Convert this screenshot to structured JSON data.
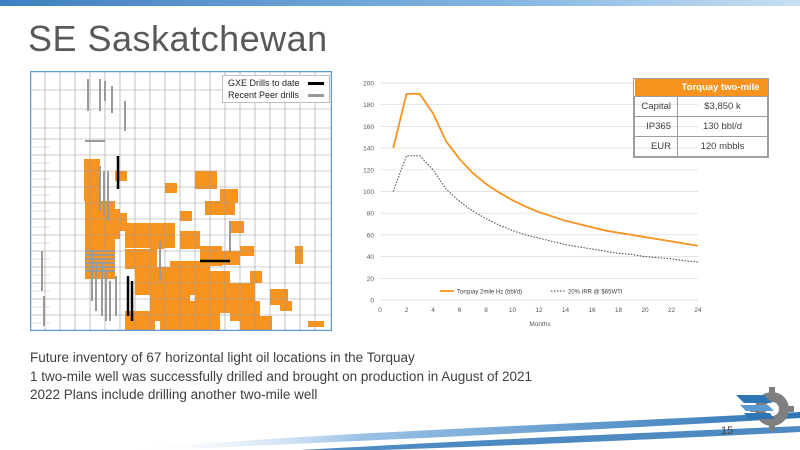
{
  "slide": {
    "title": "SE Saskatchewan",
    "page_number": "15",
    "bullets": [
      "Future inventory of 67 horizontal light oil locations in the Torquay",
      "1 two-mile well was successfully drilled and brought on production in August of 2021",
      "2022 Plans include drilling another two-mile well"
    ],
    "colors": {
      "accent": "#f7931e",
      "bar_blue": "#3f7fc0",
      "gxe_drill": "#000000",
      "peer_drill": "#9a9a9a"
    }
  },
  "map_legend": {
    "items": [
      {
        "label": "GXE Drills to date",
        "color": "#000000"
      },
      {
        "label": "Recent Peer drills",
        "color": "#9a9a9a"
      }
    ]
  },
  "summary_table": {
    "header": "Torquay two-mile",
    "rows": [
      {
        "label": "Capital",
        "value": "$3,850 k"
      },
      {
        "label": "IP365",
        "value": "130 bbl/d"
      },
      {
        "label": "EUR",
        "value": "120 mbbls"
      }
    ]
  },
  "chart_data": {
    "type": "line",
    "title": "",
    "xlabel": "Months",
    "ylabel": "",
    "xlim": [
      0,
      24
    ],
    "ylim": [
      0,
      200
    ],
    "x_ticks": [
      0,
      2,
      4,
      6,
      8,
      10,
      12,
      14,
      16,
      18,
      20,
      22,
      24
    ],
    "y_ticks": [
      0,
      20,
      40,
      60,
      80,
      100,
      120,
      140,
      160,
      180,
      200
    ],
    "grid": true,
    "legend_position": "bottom",
    "series": [
      {
        "name": "Torquay 2mile Hz (bbl/d)",
        "color": "#f7931e",
        "style": "solid",
        "x": [
          1,
          2,
          3,
          4,
          5,
          6,
          7,
          8,
          9,
          10,
          11,
          12,
          13,
          14,
          15,
          16,
          17,
          18,
          19,
          20,
          21,
          22,
          23,
          24
        ],
        "values": [
          140,
          190,
          190,
          172,
          146,
          130,
          117,
          107,
          99,
          92,
          86,
          81,
          77,
          73,
          70,
          67,
          64,
          62,
          60,
          58,
          56,
          54,
          52,
          50
        ]
      },
      {
        "name": "20% IRR @ $65WTI",
        "color": "#404040",
        "style": "dotted",
        "x": [
          1,
          2,
          3,
          4,
          5,
          6,
          7,
          8,
          9,
          10,
          11,
          12,
          13,
          14,
          15,
          16,
          17,
          18,
          19,
          20,
          21,
          22,
          23,
          24
        ],
        "values": [
          100,
          133,
          133,
          120,
          102,
          91,
          82,
          75,
          69,
          64,
          60,
          57,
          54,
          51,
          49,
          47,
          45,
          43,
          42,
          40,
          39,
          38,
          36,
          35
        ]
      }
    ]
  }
}
